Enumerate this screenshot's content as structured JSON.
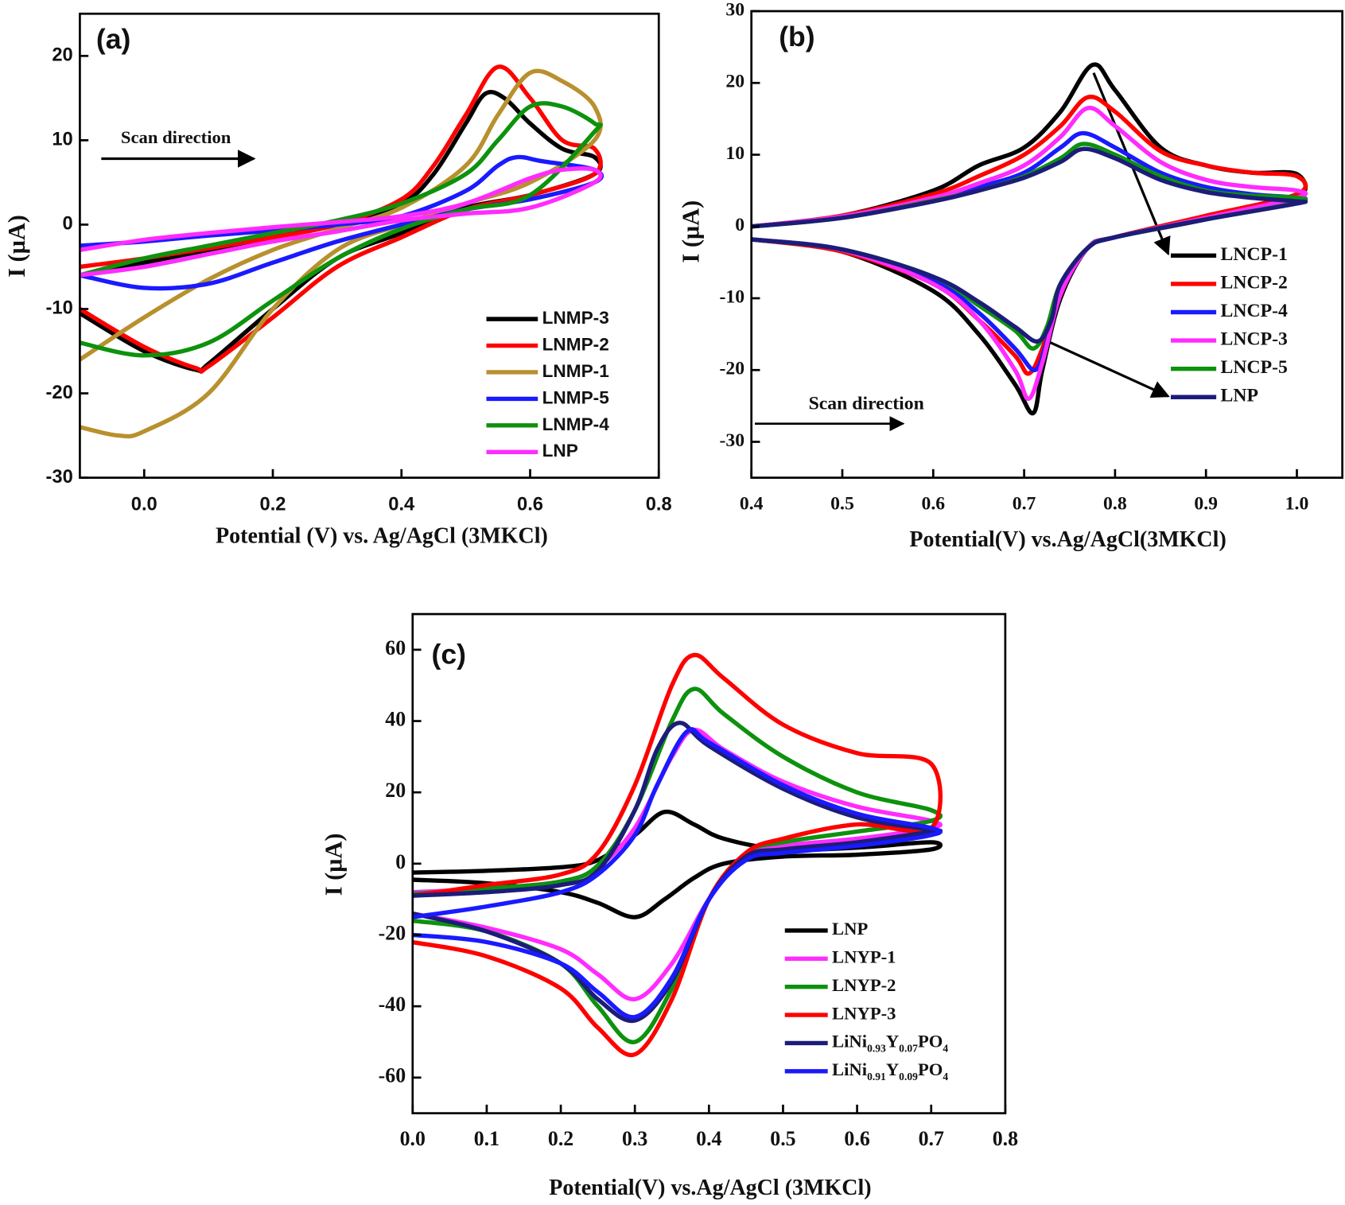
{
  "chart_data": [
    {
      "type": "line",
      "title": "(a)",
      "annotations": [
        "Scan direction"
      ],
      "x_label": "Potential (V) vs. Ag/AgCl (3MKCl)",
      "y_label": "I (µA)",
      "xlim": [
        -0.1,
        0.8
      ],
      "ylim": [
        -30,
        25
      ],
      "xticks": [
        {
          "value": 0,
          "label": "0.0"
        },
        0.2,
        0.4,
        0.6,
        0.8
      ],
      "yticks": [
        -30,
        -20,
        -10,
        0,
        10,
        20
      ],
      "series": [
        {
          "name": "LNMP-3",
          "color": "#000000",
          "x": [
            -0.1,
            0.0,
            0.1,
            0.2,
            0.3,
            0.4,
            0.45,
            0.5,
            0.53,
            0.56,
            0.6,
            0.65,
            0.7,
            0.7,
            0.6,
            0.5,
            0.4,
            0.3,
            0.2,
            0.1,
            0.08,
            0.0,
            -0.1
          ],
          "values": [
            -6,
            -4.5,
            -3,
            -1.5,
            0,
            2.5,
            6,
            12,
            15.5,
            15,
            12,
            9,
            8,
            6,
            3.5,
            2,
            -1,
            -4,
            -10,
            -16.5,
            -17.2,
            -15,
            -10.5
          ]
        },
        {
          "name": "LNMP-2",
          "color": "#ff0000",
          "x": [
            -0.1,
            0.0,
            0.1,
            0.2,
            0.3,
            0.4,
            0.45,
            0.5,
            0.55,
            0.6,
            0.65,
            0.7,
            0.7,
            0.6,
            0.5,
            0.4,
            0.3,
            0.2,
            0.1,
            0.08,
            0.0,
            -0.1
          ],
          "values": [
            -5,
            -4,
            -2.8,
            -1.5,
            0,
            3,
            7,
            13,
            18.7,
            15,
            10,
            9,
            6,
            3.5,
            1.8,
            -1.5,
            -5,
            -11,
            -16.8,
            -17,
            -14.5,
            -10
          ]
        },
        {
          "name": "LNMP-1",
          "color": "#b8902e",
          "x": [
            -0.1,
            0.0,
            0.1,
            0.2,
            0.3,
            0.4,
            0.5,
            0.55,
            0.6,
            0.65,
            0.7,
            0.7,
            0.6,
            0.5,
            0.4,
            0.3,
            0.2,
            0.1,
            0.0,
            -0.04,
            -0.1
          ],
          "values": [
            -16,
            -11,
            -6.5,
            -3,
            -0.5,
            2,
            7,
            13,
            18,
            17,
            14,
            10,
            5,
            2.5,
            0,
            -3,
            -10,
            -20,
            -24.5,
            -25,
            -24
          ]
        },
        {
          "name": "LNMP-5",
          "color": "#1a1aff",
          "x": [
            -0.1,
            0.0,
            0.1,
            0.2,
            0.3,
            0.4,
            0.5,
            0.55,
            0.58,
            0.62,
            0.7,
            0.7,
            0.6,
            0.5,
            0.4,
            0.3,
            0.2,
            0.1,
            0.0,
            -0.1
          ],
          "values": [
            -2.5,
            -2,
            -1.3,
            -0.7,
            0,
            1,
            4,
            7,
            8,
            7.5,
            6.5,
            5,
            3,
            1.8,
            0,
            -2,
            -4.5,
            -7,
            -7.5,
            -6
          ]
        },
        {
          "name": "LNMP-4",
          "color": "#0d920d",
          "x": [
            -0.1,
            0.0,
            0.1,
            0.2,
            0.3,
            0.4,
            0.5,
            0.55,
            0.6,
            0.65,
            0.7,
            0.7,
            0.6,
            0.5,
            0.4,
            0.3,
            0.2,
            0.1,
            0.0,
            -0.1
          ],
          "values": [
            -6,
            -4,
            -2.5,
            -1,
            0.5,
            2.5,
            6,
            10,
            14,
            14,
            12,
            11,
            3.5,
            1.8,
            -0.5,
            -4,
            -9,
            -14,
            -15.5,
            -14
          ]
        },
        {
          "name": "LNP",
          "color": "#ff2bff",
          "x": [
            -0.1,
            0.0,
            0.1,
            0.2,
            0.3,
            0.4,
            0.5,
            0.6,
            0.65,
            0.7,
            0.7,
            0.6,
            0.5,
            0.4,
            0.3,
            0.2,
            0.1,
            0.0,
            -0.1
          ],
          "values": [
            -3,
            -1.8,
            -1,
            -0.3,
            0.3,
            1,
            2.5,
            5.5,
            6.5,
            6.5,
            5,
            2,
            1.3,
            0.5,
            -0.8,
            -2,
            -3.5,
            -5,
            -6
          ]
        }
      ]
    },
    {
      "type": "line",
      "title": "(b)",
      "annotations": [
        "Scan direction"
      ],
      "x_label": "Potential(V) vs.Ag/AgCl(3MKCl)",
      "y_label": "I (µA)",
      "xlim": [
        0.4,
        1.05
      ],
      "ylim": [
        -35,
        30
      ],
      "xticks": [
        0.4,
        0.5,
        0.6,
        0.7,
        0.8,
        0.9,
        {
          "value": 1,
          "label": "1.0"
        }
      ],
      "yticks": [
        -30,
        -20,
        -10,
        0,
        10,
        20,
        30
      ],
      "series": [
        {
          "name": "LNCP-1",
          "color": "#000000",
          "x": [
            0.4,
            0.5,
            0.6,
            0.65,
            0.7,
            0.74,
            0.775,
            0.8,
            0.85,
            0.9,
            0.95,
            1.0,
            1.0,
            0.9,
            0.8,
            0.77,
            0.74,
            0.72,
            0.71,
            0.69,
            0.65,
            0.6,
            0.5,
            0.4
          ],
          "values": [
            0,
            1.5,
            5,
            8.5,
            11,
            16,
            22.5,
            19,
            11,
            8.5,
            7.5,
            7.3,
            4,
            1,
            -1.5,
            -3,
            -10,
            -20,
            -26,
            -22,
            -15,
            -9,
            -3.5,
            -1.8
          ]
        },
        {
          "name": "LNCP-2",
          "color": "#ff0000",
          "x": [
            0.4,
            0.5,
            0.6,
            0.65,
            0.7,
            0.74,
            0.77,
            0.8,
            0.85,
            0.9,
            0.95,
            1.0,
            1.0,
            0.9,
            0.8,
            0.77,
            0.74,
            0.72,
            0.705,
            0.69,
            0.65,
            0.6,
            0.5,
            0.4
          ],
          "values": [
            0,
            1.5,
            4.5,
            7,
            10,
            14,
            18,
            16,
            10.5,
            8.5,
            7.5,
            7,
            4.5,
            1.5,
            -1.5,
            -3,
            -9,
            -17,
            -20.5,
            -18,
            -13,
            -8,
            -3.5,
            -1.8
          ]
        },
        {
          "name": "LNCP-4",
          "color": "#1a1aff",
          "x": [
            0.4,
            0.5,
            0.6,
            0.65,
            0.7,
            0.74,
            0.765,
            0.8,
            0.85,
            0.9,
            0.95,
            1.0,
            1.0,
            0.9,
            0.8,
            0.77,
            0.74,
            0.725,
            0.712,
            0.69,
            0.65,
            0.6,
            0.5,
            0.4
          ],
          "values": [
            0,
            1.3,
            3.8,
            5.5,
            7.5,
            11,
            13,
            11,
            7.5,
            5.5,
            4.5,
            4,
            3.5,
            1,
            -1.5,
            -3,
            -9,
            -16,
            -20,
            -17,
            -12,
            -7.5,
            -3.2,
            -1.8
          ]
        },
        {
          "name": "LNCP-3",
          "color": "#ff2bff",
          "x": [
            0.4,
            0.5,
            0.6,
            0.65,
            0.7,
            0.74,
            0.77,
            0.8,
            0.85,
            0.9,
            0.95,
            1.0,
            1.0,
            0.9,
            0.8,
            0.77,
            0.74,
            0.72,
            0.705,
            0.69,
            0.65,
            0.6,
            0.5,
            0.4
          ],
          "values": [
            0,
            1.4,
            4,
            6,
            8.5,
            12.5,
            16.5,
            14,
            9,
            6.5,
            5.5,
            5,
            4,
            1.2,
            -1.5,
            -3,
            -9.5,
            -19,
            -24,
            -20,
            -13,
            -8,
            -3.3,
            -1.8
          ]
        },
        {
          "name": "LNCP-5",
          "color": "#0d920d",
          "x": [
            0.4,
            0.5,
            0.6,
            0.65,
            0.7,
            0.74,
            0.765,
            0.8,
            0.85,
            0.9,
            0.95,
            1.0,
            1.0,
            0.9,
            0.8,
            0.77,
            0.74,
            0.725,
            0.71,
            0.69,
            0.65,
            0.6,
            0.5,
            0.4
          ],
          "values": [
            0,
            1.2,
            3.6,
            5,
            7,
            9.5,
            11.5,
            10,
            7,
            5,
            4.3,
            4,
            3.3,
            1,
            -1.5,
            -3,
            -8,
            -14,
            -17,
            -14.5,
            -11,
            -7,
            -3.2,
            -1.8
          ]
        },
        {
          "name": "LNP",
          "color": "#1c1c7a",
          "x": [
            0.4,
            0.5,
            0.6,
            0.65,
            0.7,
            0.74,
            0.765,
            0.8,
            0.85,
            0.9,
            0.95,
            1.0,
            1.0,
            0.9,
            0.8,
            0.77,
            0.74,
            0.73,
            0.715,
            0.69,
            0.65,
            0.6,
            0.5,
            0.4
          ],
          "values": [
            0,
            1.2,
            3.5,
            5,
            6.8,
            9,
            10.8,
            9.5,
            6.5,
            4.8,
            4,
            3.5,
            3.2,
            1,
            -1.5,
            -3,
            -8,
            -13,
            -16,
            -14,
            -10.5,
            -7,
            -3.2,
            -1.8
          ]
        }
      ]
    },
    {
      "type": "line",
      "title": "(c)",
      "x_label": "Potential(V) vs.Ag/AgCl (3MKCl)",
      "y_label": "I (µA)",
      "xlim": [
        0,
        0.8
      ],
      "ylim": [
        -70,
        70
      ],
      "xticks": [
        {
          "value": 0,
          "label": "0.0"
        },
        0.1,
        0.2,
        0.3,
        0.4,
        0.5,
        0.6,
        0.7,
        0.8
      ],
      "yticks": [
        -60,
        -40,
        -20,
        0,
        20,
        40,
        60
      ],
      "series": [
        {
          "name": "LNP",
          "color": "#000000",
          "x": [
            0,
            0.1,
            0.2,
            0.25,
            0.3,
            0.34,
            0.38,
            0.42,
            0.5,
            0.6,
            0.7,
            0.7,
            0.6,
            0.5,
            0.42,
            0.38,
            0.34,
            0.3,
            0.25,
            0.2,
            0.1,
            0
          ],
          "values": [
            -2.5,
            -2,
            -1,
            1,
            8,
            14.5,
            11,
            7,
            4,
            4.5,
            6,
            4,
            2.5,
            2,
            0,
            -4,
            -10,
            -15,
            -11,
            -8,
            -5.5,
            -4.5
          ]
        },
        {
          "name": "LNYP-1",
          "color": "#ff2bff",
          "x": [
            0,
            0.1,
            0.2,
            0.25,
            0.3,
            0.35,
            0.38,
            0.42,
            0.5,
            0.6,
            0.7,
            0.7,
            0.6,
            0.5,
            0.45,
            0.4,
            0.35,
            0.3,
            0.25,
            0.2,
            0.1,
            0
          ],
          "values": [
            -8,
            -7,
            -5,
            -1,
            10,
            30,
            37.5,
            32,
            23,
            16,
            12,
            10,
            7,
            5,
            2,
            -10,
            -28,
            -38,
            -31,
            -24,
            -18,
            -14
          ]
        },
        {
          "name": "LNYP-2",
          "color": "#0d920d",
          "x": [
            0,
            0.1,
            0.2,
            0.25,
            0.3,
            0.35,
            0.38,
            0.42,
            0.5,
            0.6,
            0.7,
            0.7,
            0.6,
            0.5,
            0.45,
            0.4,
            0.35,
            0.3,
            0.25,
            0.2,
            0.1,
            0
          ],
          "values": [
            -8.5,
            -7,
            -5,
            -0.5,
            15,
            40,
            49,
            42,
            30,
            20,
            15,
            12,
            9,
            6,
            3,
            -10,
            -35,
            -50,
            -40,
            -28,
            -19,
            -16
          ]
        },
        {
          "name": "LNYP-3",
          "color": "#ff0000",
          "x": [
            0,
            0.1,
            0.2,
            0.25,
            0.3,
            0.35,
            0.38,
            0.42,
            0.5,
            0.6,
            0.7,
            0.7,
            0.6,
            0.5,
            0.45,
            0.4,
            0.35,
            0.3,
            0.25,
            0.2,
            0.1,
            0
          ],
          "values": [
            -9,
            -6,
            -3,
            3,
            22,
            50,
            58.5,
            52,
            39,
            31,
            28,
            10,
            11,
            7,
            3,
            -10,
            -38,
            -53.5,
            -46,
            -35,
            -26,
            -22
          ]
        },
        {
          "name": "LiNi0.93Y0.07PO4",
          "color": "#1c1c7a",
          "x": [
            0,
            0.1,
            0.2,
            0.25,
            0.3,
            0.33,
            0.36,
            0.4,
            0.5,
            0.6,
            0.7,
            0.7,
            0.6,
            0.5,
            0.45,
            0.4,
            0.35,
            0.3,
            0.25,
            0.2,
            0.1,
            0
          ],
          "values": [
            -9,
            -8,
            -6,
            -2,
            15,
            32,
            39.5,
            33,
            21,
            13,
            9.5,
            9,
            6,
            4,
            2,
            -10,
            -33,
            -44,
            -38,
            -28,
            -19,
            -14
          ]
        },
        {
          "name": "LiNi0.91Y0.09PO4",
          "color": "#1a1aff",
          "x": [
            0,
            0.1,
            0.2,
            0.25,
            0.3,
            0.33,
            0.37,
            0.4,
            0.5,
            0.6,
            0.7,
            0.7,
            0.6,
            0.5,
            0.45,
            0.4,
            0.35,
            0.3,
            0.25,
            0.2,
            0.1,
            0
          ],
          "values": [
            -15,
            -12,
            -8,
            -3,
            8,
            22,
            37,
            34,
            22,
            14,
            10,
            8,
            5,
            3,
            1,
            -10,
            -32,
            -43,
            -36,
            -28,
            -22,
            -20
          ]
        }
      ]
    }
  ]
}
